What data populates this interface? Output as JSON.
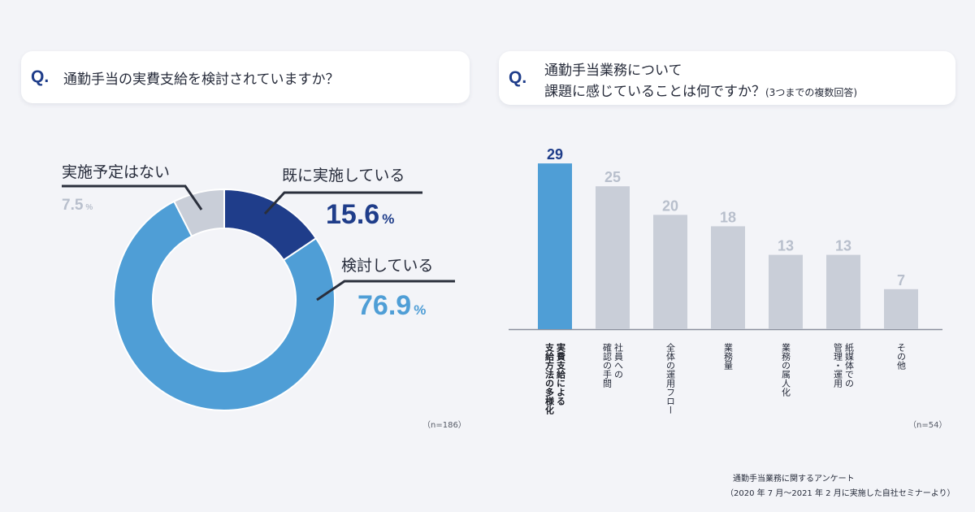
{
  "q1": {
    "mark": "Q.",
    "text": "通勤手当の実費支給を検討されていますか？",
    "n": "（n=186）"
  },
  "q2": {
    "mark": "Q.",
    "line1": "通勤手当業務について",
    "line2": "課題に感じていることは何ですか？",
    "note": "(3つまでの複数回答)",
    "n": "（n=54）"
  },
  "colors": {
    "dark_blue": "#1f3d8a",
    "mid_blue": "#4f9ed6",
    "gray": "#c9ced8",
    "gray_text": "#b8bfcc"
  },
  "chart_data": [
    {
      "type": "pie",
      "donut": true,
      "slices": [
        {
          "label": "既に実施している",
          "value": 15.6,
          "pct_text": "15.6",
          "color": "#1f3d8a",
          "value_color": "#1f3d8a"
        },
        {
          "label": "検討している",
          "value": 76.9,
          "pct_text": "76.9",
          "color": "#4f9ed6",
          "value_color": "#4f9ed6"
        },
        {
          "label": "実施予定はない",
          "value": 7.5,
          "pct_text": "7.5",
          "color": "#c9ced8",
          "value_color": "#b8bfcc"
        }
      ],
      "unit": "%"
    },
    {
      "type": "bar",
      "categories": [
        [
          "実費支給による",
          "支給方法の多様化"
        ],
        [
          "社員への",
          "確認の手間"
        ],
        [
          "全体の運用フロー"
        ],
        [
          "業務量"
        ],
        [
          "業務の属人化"
        ],
        [
          "紙媒体での",
          "管理・運用"
        ],
        [
          "その他"
        ]
      ],
      "values": [
        29,
        25,
        20,
        18,
        13,
        13,
        7
      ],
      "highlight_index": 0,
      "ylim": [
        0,
        32
      ]
    }
  ],
  "source": {
    "line1": "通勤手当業務に関するアンケート",
    "line2": "（2020 年 7 月〜2021 年 2 月に実施した自社セミナーより）"
  }
}
